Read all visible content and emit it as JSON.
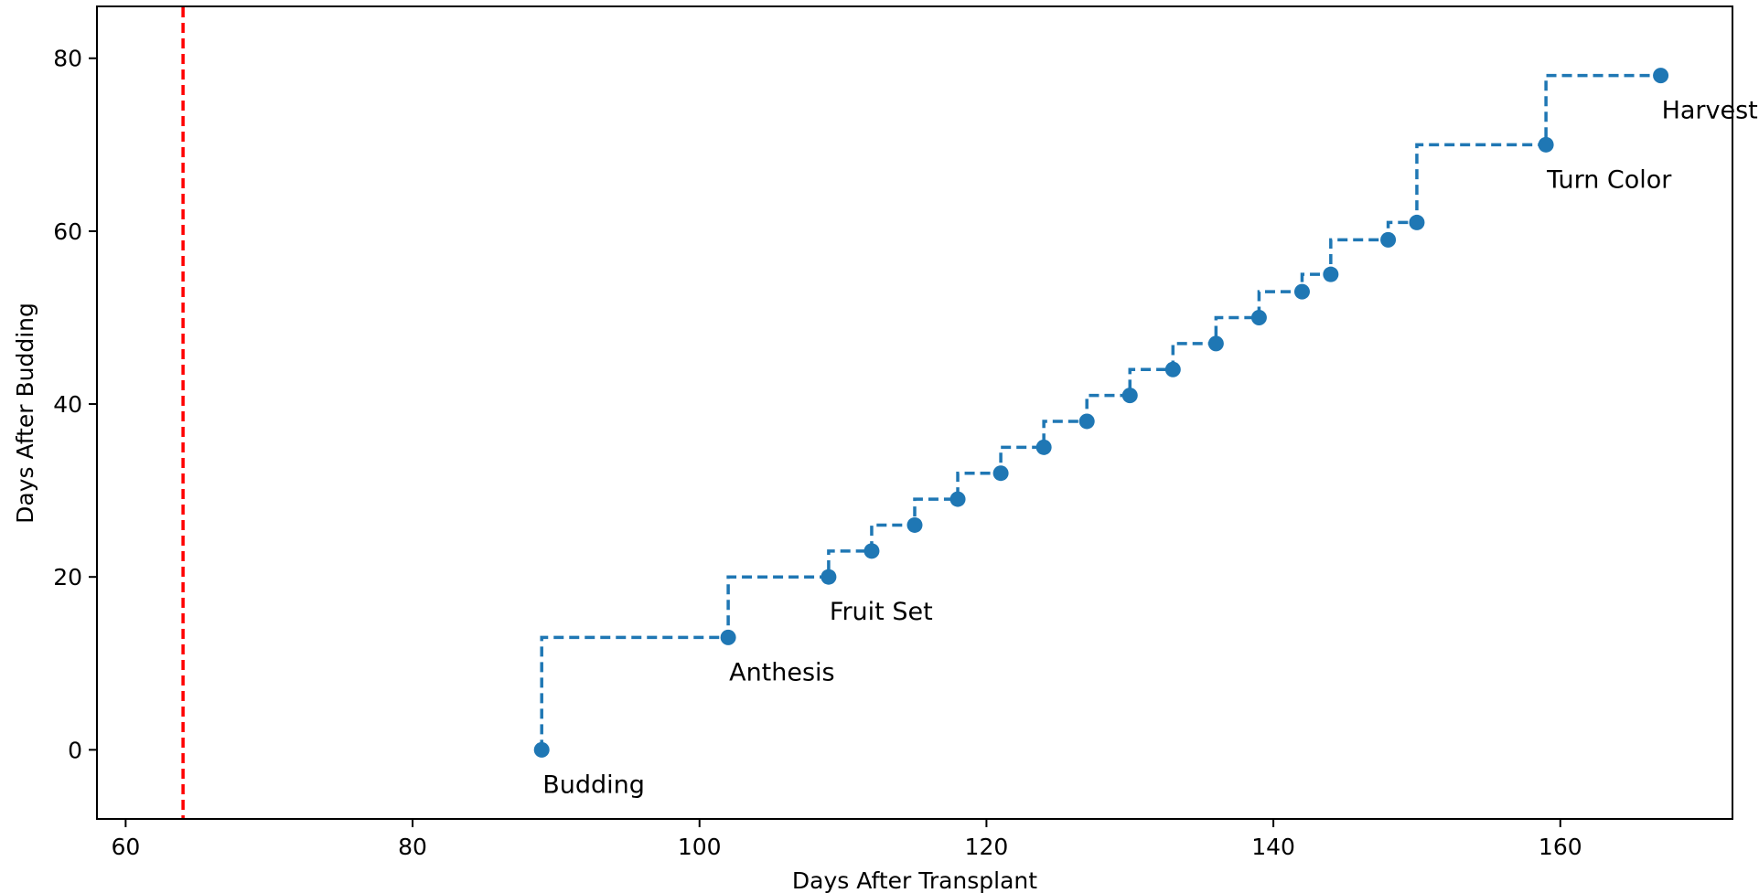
{
  "chart_data": {
    "type": "line",
    "xlabel": "Days After Transplant",
    "ylabel": "Days After Budding",
    "xlim": [
      58,
      172
    ],
    "ylim": [
      -8,
      86
    ],
    "xticks": [
      60,
      80,
      100,
      120,
      140,
      160
    ],
    "yticks": [
      0,
      20,
      40,
      60,
      80
    ],
    "grid": false,
    "step": "post",
    "series_color": "#1f77b4",
    "reference_line": {
      "x": 64,
      "color": "#ff0000",
      "style": "dashed"
    },
    "points": [
      {
        "x": 89,
        "y": 0,
        "label": "Budding"
      },
      {
        "x": 102,
        "y": 13,
        "label": "Anthesis"
      },
      {
        "x": 109,
        "y": 20,
        "label": "Fruit Set"
      },
      {
        "x": 112,
        "y": 23
      },
      {
        "x": 115,
        "y": 26
      },
      {
        "x": 118,
        "y": 29
      },
      {
        "x": 121,
        "y": 32
      },
      {
        "x": 124,
        "y": 35
      },
      {
        "x": 127,
        "y": 38
      },
      {
        "x": 130,
        "y": 41
      },
      {
        "x": 133,
        "y": 44
      },
      {
        "x": 136,
        "y": 47
      },
      {
        "x": 139,
        "y": 50
      },
      {
        "x": 142,
        "y": 53
      },
      {
        "x": 144,
        "y": 55
      },
      {
        "x": 148,
        "y": 59
      },
      {
        "x": 150,
        "y": 61
      },
      {
        "x": 159,
        "y": 70,
        "label": "Turn Color"
      },
      {
        "x": 167,
        "y": 78,
        "label": "Harvest"
      }
    ]
  }
}
